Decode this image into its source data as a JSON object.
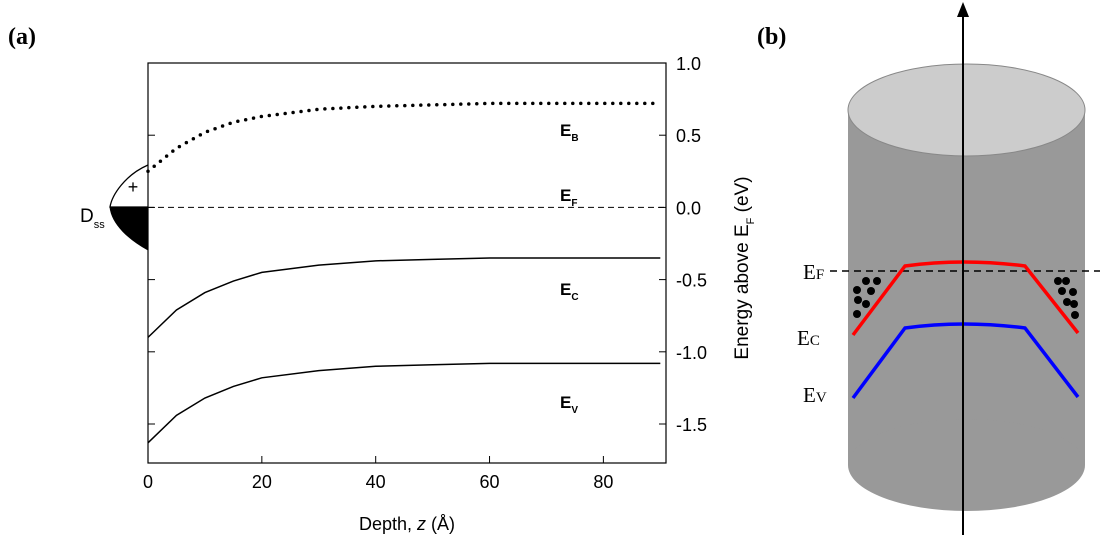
{
  "chart_data": {
    "type": "line",
    "panel_label": "(a)",
    "xlabel": {
      "before": "Depth, ",
      "italic": "z",
      "after": " (Å)"
    },
    "ylabel": {
      "before": "Energy above E",
      "sub": "F",
      "after": " (eV)"
    },
    "x": [
      0,
      5,
      10,
      15,
      20,
      30,
      40,
      50,
      60,
      70,
      80,
      90
    ],
    "series": [
      {
        "name": "E",
        "subscript": "B",
        "color": "#000000",
        "style": "dotted",
        "values": [
          0.25,
          0.41,
          0.52,
          0.59,
          0.63,
          0.68,
          0.7,
          0.71,
          0.72,
          0.72,
          0.72,
          0.72
        ]
      },
      {
        "name": "E",
        "subscript": "C",
        "color": "#000000",
        "style": "solid",
        "values": [
          -0.9,
          -0.71,
          -0.59,
          -0.51,
          -0.45,
          -0.4,
          -0.37,
          -0.36,
          -0.35,
          -0.35,
          -0.35,
          -0.35
        ]
      },
      {
        "name": "E",
        "subscript": "V",
        "color": "#000000",
        "style": "solid",
        "values": [
          -1.63,
          -1.44,
          -1.32,
          -1.24,
          -1.18,
          -1.13,
          -1.1,
          -1.09,
          -1.08,
          -1.08,
          -1.08,
          -1.08
        ]
      }
    ],
    "fermi_level": {
      "name": "E",
      "subscript": "F",
      "value": 0
    },
    "surface_states": {
      "name": "D",
      "subscript": "ss",
      "sign": "+"
    },
    "xlim": [
      0,
      91
    ],
    "xticks": [
      0,
      20,
      40,
      60,
      80
    ],
    "ylim": [
      -1.77,
      1.0
    ],
    "yticks": [
      {
        "value": 1.0,
        "label": "1.0"
      },
      0.5,
      {
        "value": 0,
        "label": "0.0"
      },
      -0.5,
      {
        "value": -1.0,
        "label": "-1.0"
      },
      -1.5
    ]
  },
  "diagram": {
    "panel_label": "(b)",
    "levels": [
      {
        "name": "E",
        "sub": "F"
      },
      {
        "name": "E",
        "sub": "C"
      },
      {
        "name": "E",
        "sub": "V"
      }
    ]
  }
}
